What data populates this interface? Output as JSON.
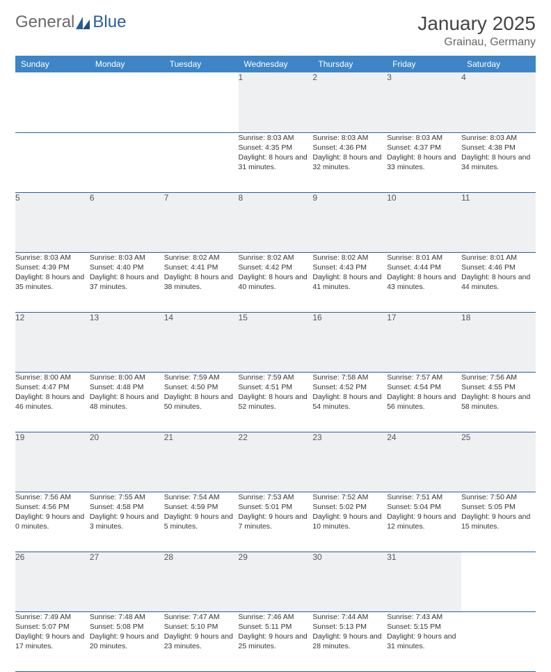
{
  "logo": {
    "text1": "General",
    "text2": "Blue",
    "accent": "#2a5d9e"
  },
  "title": "January 2025",
  "location": "Grainau, Germany",
  "header_bg": "#3d85c6",
  "daynum_bg": "#eef0f2",
  "rule_color": "#2a5d9e",
  "weekdays": [
    "Sunday",
    "Monday",
    "Tuesday",
    "Wednesday",
    "Thursday",
    "Friday",
    "Saturday"
  ],
  "weeks": [
    [
      null,
      null,
      null,
      {
        "n": "1",
        "sr": "8:03 AM",
        "ss": "4:35 PM",
        "dl": "8 hours and 31 minutes."
      },
      {
        "n": "2",
        "sr": "8:03 AM",
        "ss": "4:36 PM",
        "dl": "8 hours and 32 minutes."
      },
      {
        "n": "3",
        "sr": "8:03 AM",
        "ss": "4:37 PM",
        "dl": "8 hours and 33 minutes."
      },
      {
        "n": "4",
        "sr": "8:03 AM",
        "ss": "4:38 PM",
        "dl": "8 hours and 34 minutes."
      }
    ],
    [
      {
        "n": "5",
        "sr": "8:03 AM",
        "ss": "4:39 PM",
        "dl": "8 hours and 35 minutes."
      },
      {
        "n": "6",
        "sr": "8:03 AM",
        "ss": "4:40 PM",
        "dl": "8 hours and 37 minutes."
      },
      {
        "n": "7",
        "sr": "8:02 AM",
        "ss": "4:41 PM",
        "dl": "8 hours and 38 minutes."
      },
      {
        "n": "8",
        "sr": "8:02 AM",
        "ss": "4:42 PM",
        "dl": "8 hours and 40 minutes."
      },
      {
        "n": "9",
        "sr": "8:02 AM",
        "ss": "4:43 PM",
        "dl": "8 hours and 41 minutes."
      },
      {
        "n": "10",
        "sr": "8:01 AM",
        "ss": "4:44 PM",
        "dl": "8 hours and 43 minutes."
      },
      {
        "n": "11",
        "sr": "8:01 AM",
        "ss": "4:46 PM",
        "dl": "8 hours and 44 minutes."
      }
    ],
    [
      {
        "n": "12",
        "sr": "8:00 AM",
        "ss": "4:47 PM",
        "dl": "8 hours and 46 minutes."
      },
      {
        "n": "13",
        "sr": "8:00 AM",
        "ss": "4:48 PM",
        "dl": "8 hours and 48 minutes."
      },
      {
        "n": "14",
        "sr": "7:59 AM",
        "ss": "4:50 PM",
        "dl": "8 hours and 50 minutes."
      },
      {
        "n": "15",
        "sr": "7:59 AM",
        "ss": "4:51 PM",
        "dl": "8 hours and 52 minutes."
      },
      {
        "n": "16",
        "sr": "7:58 AM",
        "ss": "4:52 PM",
        "dl": "8 hours and 54 minutes."
      },
      {
        "n": "17",
        "sr": "7:57 AM",
        "ss": "4:54 PM",
        "dl": "8 hours and 56 minutes."
      },
      {
        "n": "18",
        "sr": "7:56 AM",
        "ss": "4:55 PM",
        "dl": "8 hours and 58 minutes."
      }
    ],
    [
      {
        "n": "19",
        "sr": "7:56 AM",
        "ss": "4:56 PM",
        "dl": "9 hours and 0 minutes."
      },
      {
        "n": "20",
        "sr": "7:55 AM",
        "ss": "4:58 PM",
        "dl": "9 hours and 3 minutes."
      },
      {
        "n": "21",
        "sr": "7:54 AM",
        "ss": "4:59 PM",
        "dl": "9 hours and 5 minutes."
      },
      {
        "n": "22",
        "sr": "7:53 AM",
        "ss": "5:01 PM",
        "dl": "9 hours and 7 minutes."
      },
      {
        "n": "23",
        "sr": "7:52 AM",
        "ss": "5:02 PM",
        "dl": "9 hours and 10 minutes."
      },
      {
        "n": "24",
        "sr": "7:51 AM",
        "ss": "5:04 PM",
        "dl": "9 hours and 12 minutes."
      },
      {
        "n": "25",
        "sr": "7:50 AM",
        "ss": "5:05 PM",
        "dl": "9 hours and 15 minutes."
      }
    ],
    [
      {
        "n": "26",
        "sr": "7:49 AM",
        "ss": "5:07 PM",
        "dl": "9 hours and 17 minutes."
      },
      {
        "n": "27",
        "sr": "7:48 AM",
        "ss": "5:08 PM",
        "dl": "9 hours and 20 minutes."
      },
      {
        "n": "28",
        "sr": "7:47 AM",
        "ss": "5:10 PM",
        "dl": "9 hours and 23 minutes."
      },
      {
        "n": "29",
        "sr": "7:46 AM",
        "ss": "5:11 PM",
        "dl": "9 hours and 25 minutes."
      },
      {
        "n": "30",
        "sr": "7:44 AM",
        "ss": "5:13 PM",
        "dl": "9 hours and 28 minutes."
      },
      {
        "n": "31",
        "sr": "7:43 AM",
        "ss": "5:15 PM",
        "dl": "9 hours and 31 minutes."
      },
      null
    ]
  ],
  "labels": {
    "sunrise": "Sunrise:",
    "sunset": "Sunset:",
    "daylight": "Daylight:"
  }
}
